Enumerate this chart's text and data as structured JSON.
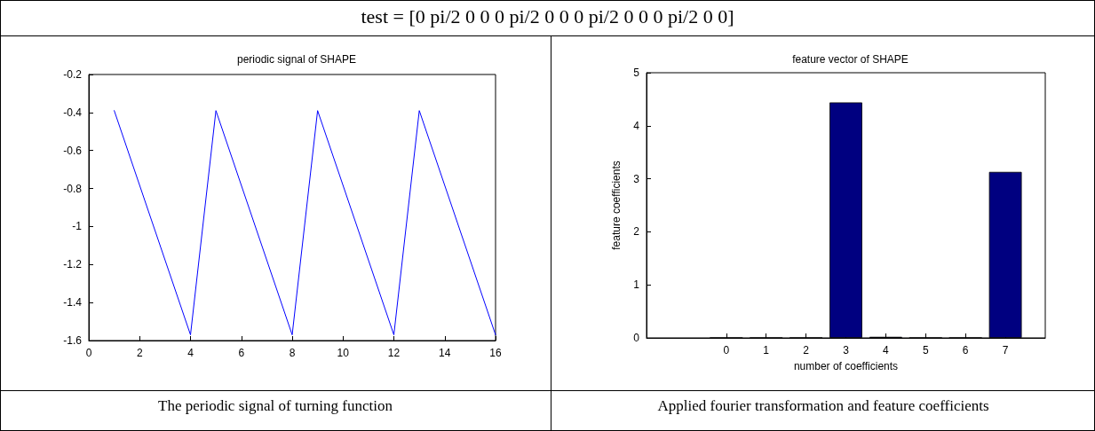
{
  "chart_data": [
    {
      "type": "line",
      "title": "periodic signal of SHAPE",
      "annotations": [
        "test = [0 pi/2 0 0 0 pi/2 0 0 0 pi/2 0 0 0 pi/2 0 0]",
        "The periodic signal of turning function"
      ],
      "x": [
        1,
        4,
        5,
        8,
        9,
        12,
        13,
        16
      ],
      "series": [
        {
          "color": "#0000ff",
          "values": [
            -0.39,
            -1.57,
            -0.39,
            -1.57,
            -0.39,
            -1.57,
            -0.39,
            -1.57
          ]
        }
      ],
      "xlim": [
        0,
        16
      ],
      "xticks": [
        0,
        2,
        4,
        6,
        8,
        10,
        12,
        14,
        16
      ],
      "ylim": [
        -1.6,
        -0.2
      ],
      "yticks": [
        -1.6,
        -1.4,
        -1.2,
        -1,
        -0.8,
        -0.6,
        -0.4,
        -0.2
      ],
      "marker": "none",
      "line_style": "solid"
    },
    {
      "type": "bar",
      "title": "feature vector of SHAPE",
      "xlabel": "number of coefficients",
      "ylabel": "feature coefficients",
      "annotations": [
        "Applied fourier transformation and feature coefficients"
      ],
      "x": [
        0,
        1,
        2,
        3,
        4,
        5,
        6,
        7
      ],
      "series": [
        {
          "color": "#000080",
          "values": [
            0,
            0,
            0,
            4.44,
            0.02,
            0,
            0,
            3.13
          ]
        }
      ],
      "xlim": [
        -2,
        8
      ],
      "xticks": [
        0,
        1,
        2,
        3,
        4,
        5,
        6,
        7
      ],
      "ylim": [
        0,
        5
      ],
      "yticks": [
        0,
        1,
        2,
        3,
        4,
        5
      ]
    }
  ]
}
